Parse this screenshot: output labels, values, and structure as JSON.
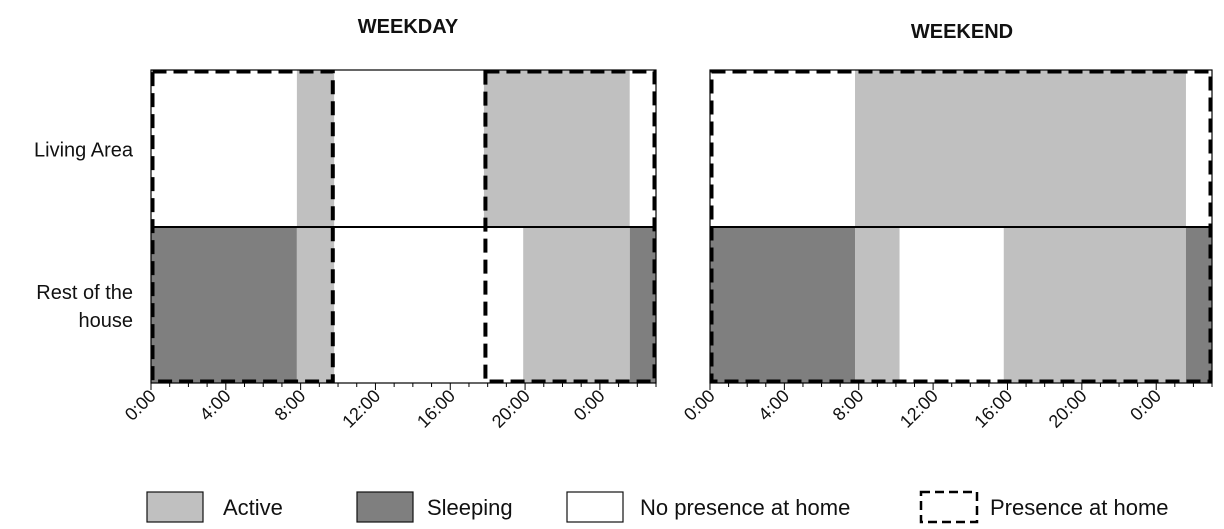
{
  "chart_data": {
    "type": "timeline",
    "panels": [
      {
        "title": "WEEKDAY",
        "x_ticks": [
          "0:00",
          "4:00",
          "8:00",
          "12:00",
          "16:00",
          "20:00",
          "0:00"
        ],
        "rows": [
          {
            "label_lines": [
              "Living Area"
            ],
            "segments": [
              {
                "start": 0,
                "end": 7.8,
                "state": "no_presence"
              },
              {
                "start": 7.8,
                "end": 9.8,
                "state": "active"
              },
              {
                "start": 9.8,
                "end": 17.8,
                "state": "no_presence"
              },
              {
                "start": 17.8,
                "end": 25.6,
                "state": "active"
              },
              {
                "start": 25.6,
                "end": 27,
                "state": "no_presence"
              }
            ]
          },
          {
            "label_lines": [
              "Rest of the",
              "house"
            ],
            "segments": [
              {
                "start": 0,
                "end": 7.8,
                "state": "sleeping"
              },
              {
                "start": 7.8,
                "end": 9.8,
                "state": "active"
              },
              {
                "start": 9.8,
                "end": 19.9,
                "state": "no_presence"
              },
              {
                "start": 19.9,
                "end": 25.6,
                "state": "active"
              },
              {
                "start": 25.6,
                "end": 27,
                "state": "sleeping"
              }
            ]
          }
        ],
        "presence_at_home": [
          {
            "start": 0,
            "end": 9.8
          },
          {
            "start": 17.8,
            "end": 27
          }
        ]
      },
      {
        "title": "WEEKEND",
        "x_ticks": [
          "0:00",
          "4:00",
          "8:00",
          "12:00",
          "16:00",
          "20:00",
          "0:00"
        ],
        "rows": [
          {
            "label_lines": [],
            "segments": [
              {
                "start": 0,
                "end": 7.8,
                "state": "no_presence"
              },
              {
                "start": 7.8,
                "end": 25.6,
                "state": "active"
              },
              {
                "start": 25.6,
                "end": 27,
                "state": "no_presence"
              }
            ]
          },
          {
            "label_lines": [],
            "segments": [
              {
                "start": 0,
                "end": 7.8,
                "state": "sleeping"
              },
              {
                "start": 7.8,
                "end": 10.2,
                "state": "active"
              },
              {
                "start": 10.2,
                "end": 15.8,
                "state": "no_presence"
              },
              {
                "start": 15.8,
                "end": 25.6,
                "state": "active"
              },
              {
                "start": 25.6,
                "end": 27,
                "state": "sleeping"
              }
            ]
          }
        ],
        "presence_at_home": [
          {
            "start": 0,
            "end": 27
          }
        ]
      }
    ],
    "legend": [
      {
        "key": "active",
        "label": "Active",
        "color": "#c0c0c0",
        "style": "fill"
      },
      {
        "key": "sleeping",
        "label": "Sleeping",
        "color": "#7f7f7f",
        "style": "fill"
      },
      {
        "key": "no_presence",
        "label": "No presence at home",
        "color": "#ffffff",
        "style": "fill"
      },
      {
        "key": "presence",
        "label": "Presence at home",
        "color": "#000000",
        "style": "dashed"
      }
    ],
    "state_colors": {
      "active": "#c0c0c0",
      "sleeping": "#7f7f7f",
      "no_presence": "#ffffff"
    },
    "x_range_hours": [
      0,
      27
    ],
    "tick_hours": [
      0,
      4,
      8,
      12,
      16,
      20,
      24
    ],
    "legend_placement": "bottom",
    "grid": false
  }
}
